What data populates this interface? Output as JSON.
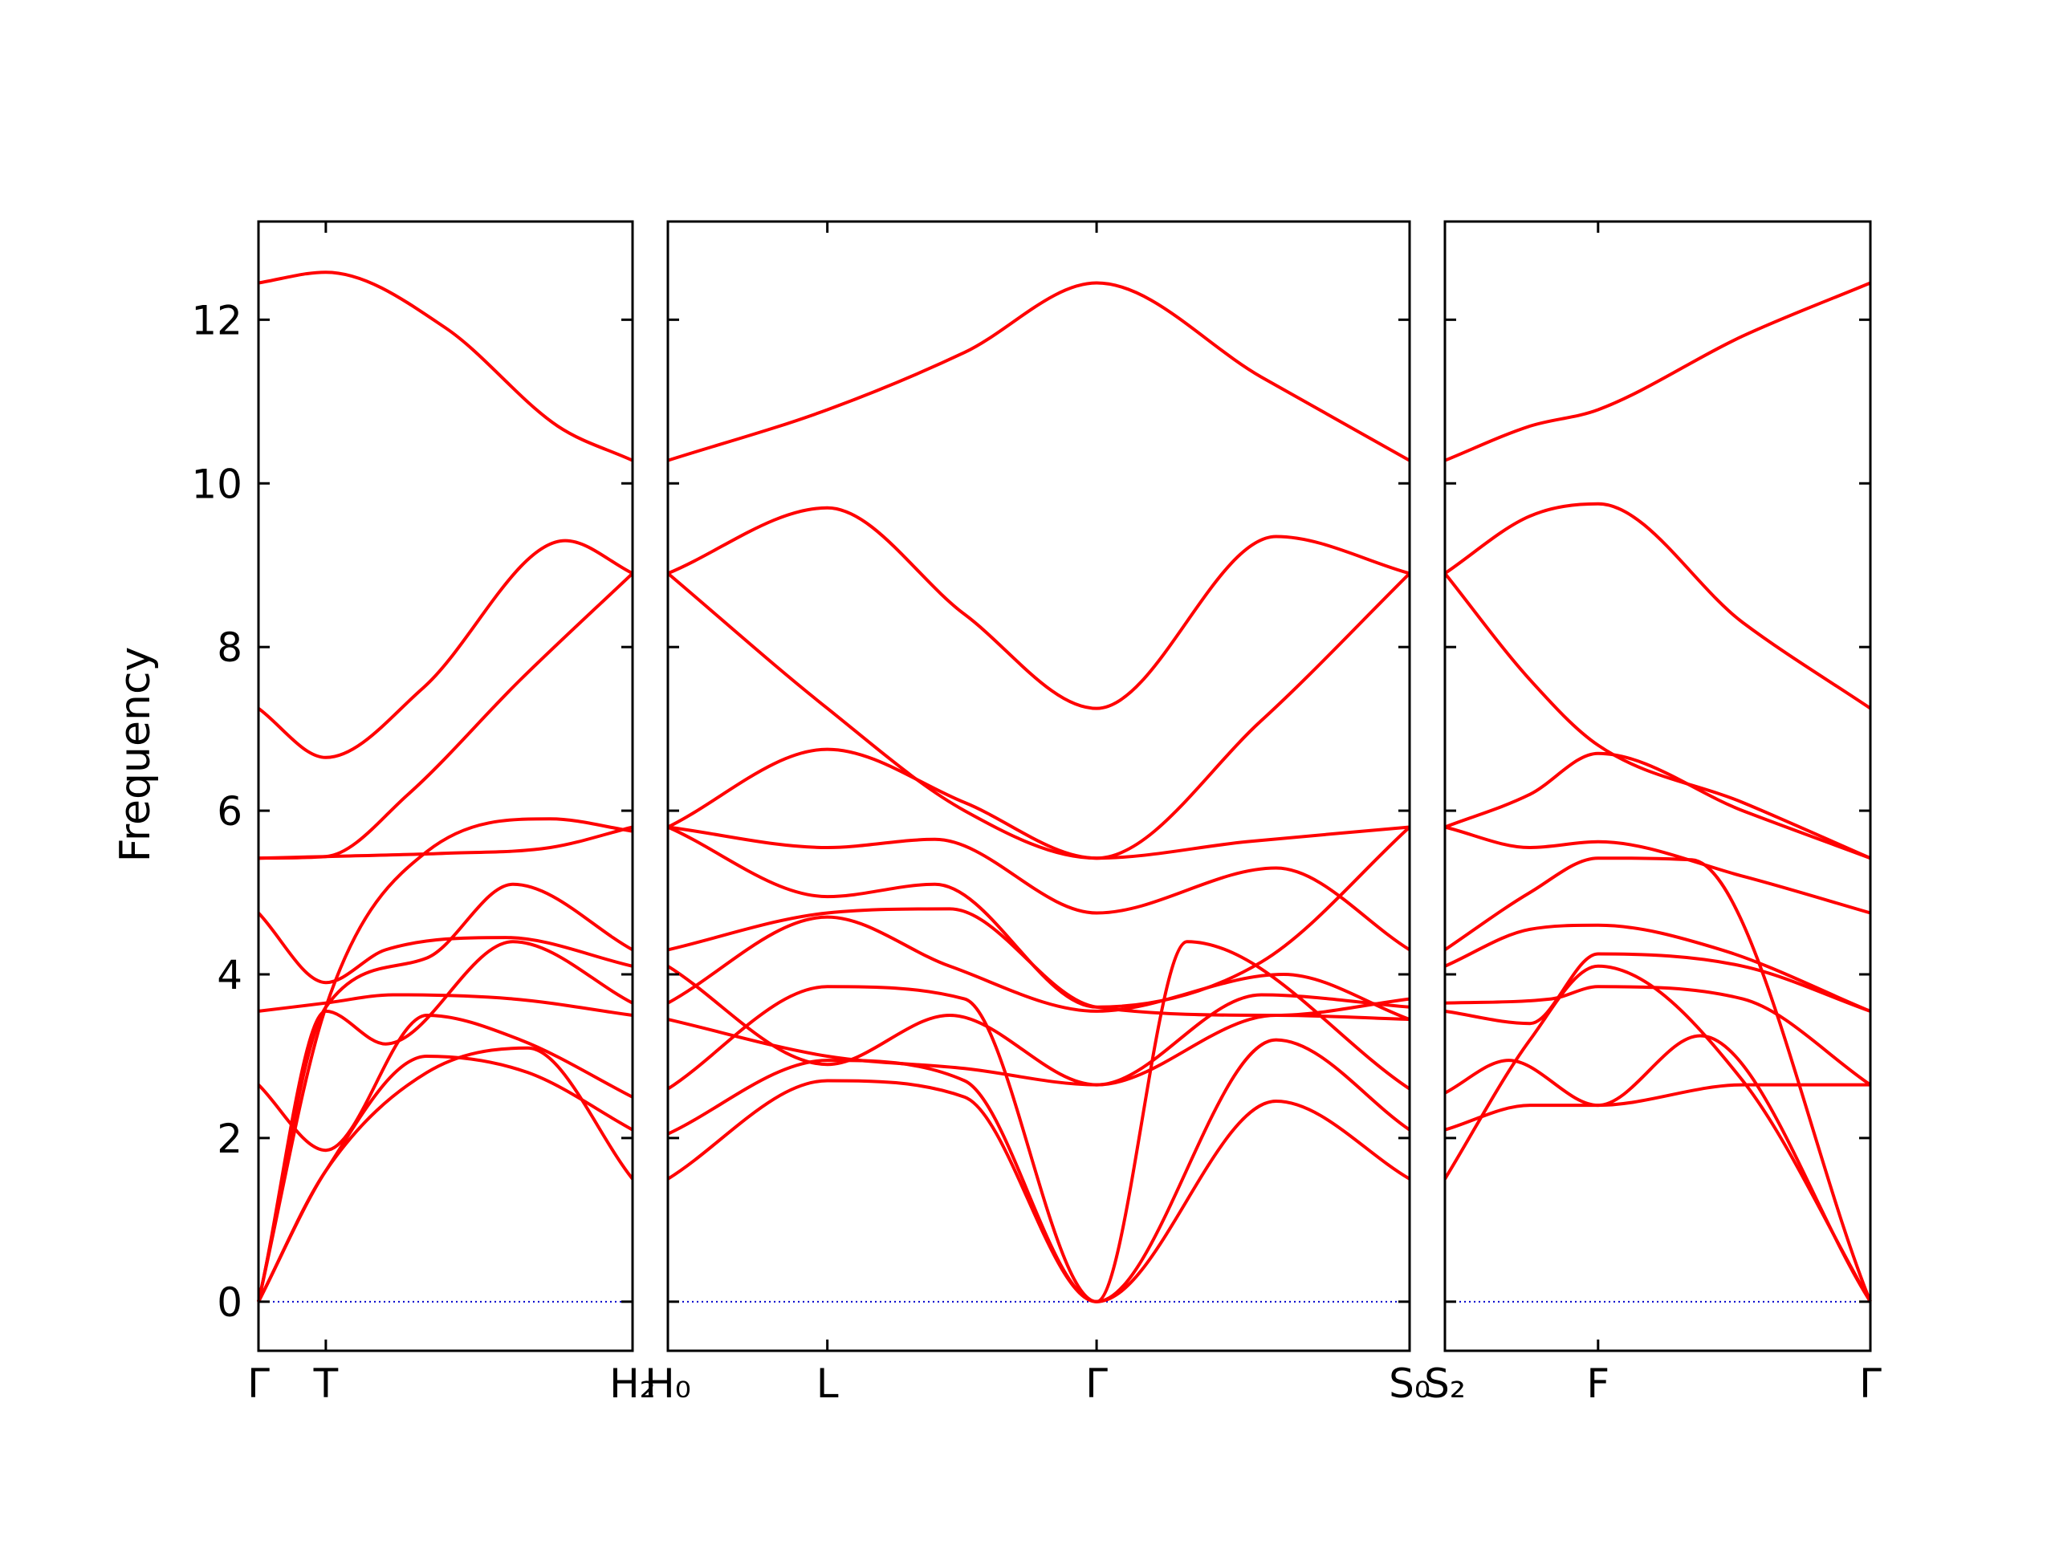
{
  "chart_data": {
    "type": "line",
    "ylabel": "Frequency",
    "ylim": [
      -0.6,
      13.2
    ],
    "yticks": [
      0,
      2,
      4,
      6,
      8,
      10,
      12
    ],
    "series_color": "#ff0000",
    "zero_line_color": "#0000cc",
    "panels": [
      {
        "x_range": [
          0,
          1
        ],
        "xtick_positions": [
          0,
          0.18,
          1
        ],
        "xtick_labels": [
          "Γ",
          "T",
          "H₂"
        ],
        "bands": [
          {
            "x": [
              0,
              0.18,
              0.45,
              0.72,
              1
            ],
            "y": [
              0,
              1.6,
              2.8,
              3.1,
              1.5
            ]
          },
          {
            "x": [
              0,
              0.18,
              0.45,
              0.72,
              1
            ],
            "y": [
              0,
              1.6,
              3.0,
              2.8,
              2.1
            ]
          },
          {
            "x": [
              0,
              0.18,
              0.45,
              0.7,
              1
            ],
            "y": [
              2.65,
              1.85,
              3.5,
              3.2,
              2.5
            ]
          },
          {
            "x": [
              0,
              0.18,
              0.34,
              0.68,
              1
            ],
            "y": [
              0,
              3.55,
              3.15,
              4.4,
              3.65
            ]
          },
          {
            "x": [
              0,
              0.18,
              0.36,
              0.68,
              1
            ],
            "y": [
              3.55,
              3.65,
              3.75,
              3.7,
              3.5
            ]
          },
          {
            "x": [
              0,
              0.18,
              0.34,
              0.66,
              1
            ],
            "y": [
              4.75,
              3.9,
              4.3,
              4.45,
              4.1
            ]
          },
          {
            "x": [
              0,
              0.18,
              0.45,
              0.68,
              1
            ],
            "y": [
              0,
              3.6,
              4.2,
              5.1,
              4.3
            ]
          },
          {
            "x": [
              0,
              0.18,
              0.45,
              0.78,
              1
            ],
            "y": [
              0,
              3.6,
              5.5,
              5.9,
              5.75
            ]
          },
          {
            "x": [
              0,
              0.18,
              0.5,
              0.78,
              1
            ],
            "y": [
              5.42,
              5.44,
              5.48,
              5.55,
              5.8
            ]
          },
          {
            "x": [
              0,
              0.18,
              0.4,
              0.7,
              1
            ],
            "y": [
              5.42,
              5.44,
              6.2,
              7.6,
              8.9
            ]
          },
          {
            "x": [
              0,
              0.18,
              0.44,
              0.82,
              1
            ],
            "y": [
              7.25,
              6.65,
              7.5,
              9.3,
              8.9
            ]
          },
          {
            "x": [
              0,
              0.18,
              0.5,
              0.8,
              1
            ],
            "y": [
              12.45,
              12.58,
              11.9,
              10.7,
              10.28
            ]
          }
        ]
      },
      {
        "x_range": [
          0,
          1
        ],
        "xtick_positions": [
          0,
          0.215,
          0.578,
          1
        ],
        "xtick_labels": [
          "H₀",
          "L",
          "Γ",
          "S₀"
        ],
        "bands": [
          {
            "x": [
              0,
              0.215,
              0.4,
              0.578,
              0.82,
              1
            ],
            "y": [
              1.5,
              2.7,
              2.5,
              0,
              2.45,
              1.5
            ]
          },
          {
            "x": [
              0,
              0.215,
              0.4,
              0.578,
              0.82,
              1
            ],
            "y": [
              2.05,
              2.95,
              2.7,
              0,
              3.2,
              2.1
            ]
          },
          {
            "x": [
              0,
              0.215,
              0.4,
              0.578,
              0.7,
              1
            ],
            "y": [
              2.6,
              3.85,
              3.7,
              0,
              4.4,
              2.6
            ]
          },
          {
            "x": [
              0,
              0.215,
              0.4,
              0.578,
              0.8,
              1
            ],
            "y": [
              3.45,
              3.0,
              2.85,
              2.65,
              3.75,
              3.6
            ]
          },
          {
            "x": [
              0,
              0.215,
              0.38,
              0.578,
              0.83,
              1
            ],
            "y": [
              3.65,
              4.7,
              4.1,
              3.55,
              4.0,
              3.45
            ]
          },
          {
            "x": [
              0,
              0.215,
              0.38,
              0.578,
              0.82,
              1
            ],
            "y": [
              4.1,
              2.9,
              3.5,
              2.65,
              3.5,
              3.45
            ]
          },
          {
            "x": [
              0,
              0.215,
              0.38,
              0.578,
              0.82,
              1
            ],
            "y": [
              4.3,
              4.75,
              4.8,
              3.6,
              3.5,
              3.7
            ]
          },
          {
            "x": [
              0,
              0.215,
              0.36,
              0.578,
              0.82,
              1
            ],
            "y": [
              5.8,
              5.55,
              5.65,
              4.75,
              5.3,
              4.3
            ]
          },
          {
            "x": [
              0,
              0.215,
              0.36,
              0.578,
              0.8,
              1
            ],
            "y": [
              5.8,
              4.95,
              5.1,
              3.6,
              4.15,
              5.8
            ]
          },
          {
            "x": [
              0,
              0.215,
              0.4,
              0.578,
              0.78,
              1
            ],
            "y": [
              5.8,
              6.75,
              6.1,
              5.42,
              5.62,
              5.8
            ]
          },
          {
            "x": [
              0,
              0.215,
              0.4,
              0.578,
              0.8,
              1
            ],
            "y": [
              8.9,
              7.25,
              6.0,
              5.42,
              7.1,
              8.9
            ]
          },
          {
            "x": [
              0,
              0.215,
              0.4,
              0.578,
              0.82,
              1
            ],
            "y": [
              8.9,
              9.7,
              8.4,
              7.25,
              9.35,
              8.9
            ]
          },
          {
            "x": [
              0,
              0.215,
              0.4,
              0.578,
              0.8,
              1
            ],
            "y": [
              10.28,
              10.9,
              11.6,
              12.45,
              11.3,
              10.28
            ]
          }
        ]
      },
      {
        "x_range": [
          0,
          1
        ],
        "xtick_positions": [
          0,
          0.36,
          1
        ],
        "xtick_labels": [
          "S₂",
          "F",
          "Γ"
        ],
        "bands": [
          {
            "x": [
              0,
              0.2,
              0.36,
              0.7,
              1
            ],
            "y": [
              1.5,
              3.2,
              4.1,
              2.7,
              0
            ]
          },
          {
            "x": [
              0,
              0.2,
              0.36,
              0.6,
              1
            ],
            "y": [
              2.1,
              2.4,
              2.4,
              3.25,
              0
            ]
          },
          {
            "x": [
              0,
              0.15,
              0.36,
              0.7,
              1
            ],
            "y": [
              2.55,
              2.95,
              2.4,
              2.65,
              2.65
            ]
          },
          {
            "x": [
              0,
              0.25,
              0.36,
              0.7,
              1
            ],
            "y": [
              3.65,
              3.7,
              3.85,
              3.7,
              2.65
            ]
          },
          {
            "x": [
              0,
              0.2,
              0.36,
              0.7,
              1
            ],
            "y": [
              3.55,
              3.4,
              4.25,
              4.1,
              3.55
            ]
          },
          {
            "x": [
              0,
              0.2,
              0.36,
              0.65,
              1
            ],
            "y": [
              4.1,
              4.55,
              4.6,
              4.3,
              3.55
            ]
          },
          {
            "x": [
              0,
              0.2,
              0.36,
              0.58,
              1
            ],
            "y": [
              4.3,
              5.0,
              5.42,
              5.4,
              0
            ]
          },
          {
            "x": [
              0,
              0.2,
              0.36,
              0.7,
              1
            ],
            "y": [
              5.8,
              5.55,
              5.62,
              5.2,
              4.75
            ]
          },
          {
            "x": [
              0,
              0.2,
              0.36,
              0.7,
              1
            ],
            "y": [
              5.8,
              6.2,
              6.7,
              6.0,
              5.42
            ]
          },
          {
            "x": [
              0,
              0.2,
              0.36,
              0.7,
              1
            ],
            "y": [
              8.9,
              7.6,
              6.8,
              6.1,
              5.42
            ]
          },
          {
            "x": [
              0,
              0.2,
              0.36,
              0.7,
              1
            ],
            "y": [
              8.9,
              9.6,
              9.75,
              8.3,
              7.25
            ]
          },
          {
            "x": [
              0,
              0.2,
              0.36,
              0.7,
              1
            ],
            "y": [
              10.28,
              10.7,
              10.9,
              11.8,
              12.45
            ]
          }
        ]
      }
    ]
  }
}
